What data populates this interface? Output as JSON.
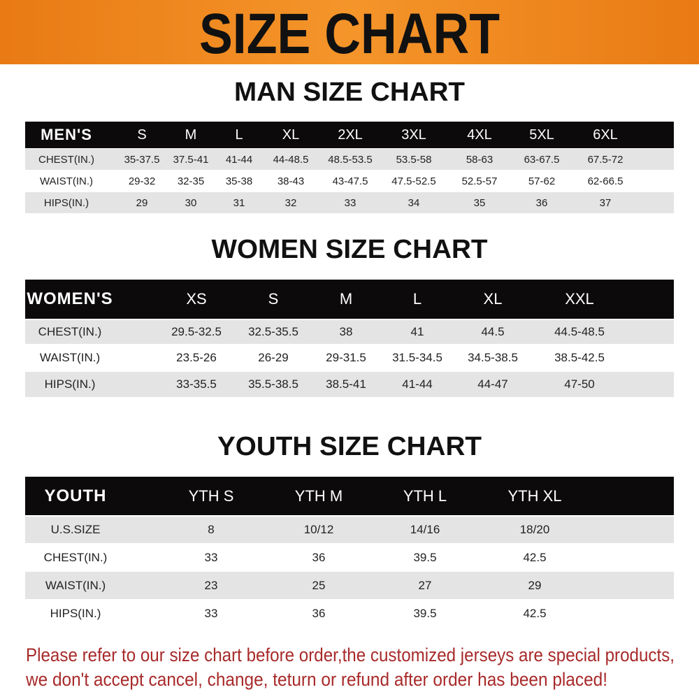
{
  "banner": {
    "title": "SIZE CHART",
    "color": "#ef8a1f"
  },
  "men": {
    "title": "MAN SIZE CHART",
    "header": [
      "MEN'S",
      "S",
      "M",
      "L",
      "XL",
      "2XL",
      "3XL",
      "4XL",
      "5XL",
      "6XL"
    ],
    "rows": [
      [
        "CHEST(IN.)",
        "35-37.5",
        "37.5-41",
        "41-44",
        "44-48.5",
        "48.5-53.5",
        "53.5-58",
        "58-63",
        "63-67.5",
        "67.5-72"
      ],
      [
        "WAIST(IN.)",
        "29-32",
        "32-35",
        "35-38",
        "38-43",
        "43-47.5",
        "47.5-52.5",
        "52.5-57",
        "57-62",
        "62-66.5"
      ],
      [
        "HIPS(IN.)",
        "29",
        "30",
        "31",
        "32",
        "33",
        "34",
        "35",
        "36",
        "37"
      ]
    ]
  },
  "women": {
    "title": "WOMEN SIZE CHART",
    "header": [
      "WOMEN'S",
      "XS",
      "S",
      "M",
      "L",
      "XL",
      "XXL"
    ],
    "rows": [
      [
        "CHEST(IN.)",
        "29.5-32.5",
        "32.5-35.5",
        "38",
        "41",
        "44.5",
        "44.5-48.5"
      ],
      [
        "WAIST(IN.)",
        "23.5-26",
        "26-29",
        "29-31.5",
        "31.5-34.5",
        "34.5-38.5",
        "38.5-42.5"
      ],
      [
        "HIPS(IN.)",
        "33-35.5",
        "35.5-38.5",
        "38.5-41",
        "41-44",
        "44-47",
        "47-50"
      ]
    ]
  },
  "youth": {
    "title": "YOUTH SIZE CHART",
    "header": [
      "YOUTH",
      "YTH S",
      "YTH M",
      "YTH L",
      "YTH XL"
    ],
    "rows": [
      [
        "U.S.SIZE",
        "8",
        "10/12",
        "14/16",
        "18/20"
      ],
      [
        "CHEST(IN.)",
        "33",
        "36",
        "39.5",
        "42.5"
      ],
      [
        "WAIST(IN.)",
        "23",
        "25",
        "27",
        "29"
      ],
      [
        "HIPS(IN.)",
        "33",
        "36",
        "39.5",
        "42.5"
      ]
    ]
  },
  "footer": {
    "line1": "Please refer to our size chart before order,the customized jerseys are special products,",
    "line2": "we don't accept cancel, change, teturn or refund after order has been placed!",
    "color": "#a82a2a"
  }
}
